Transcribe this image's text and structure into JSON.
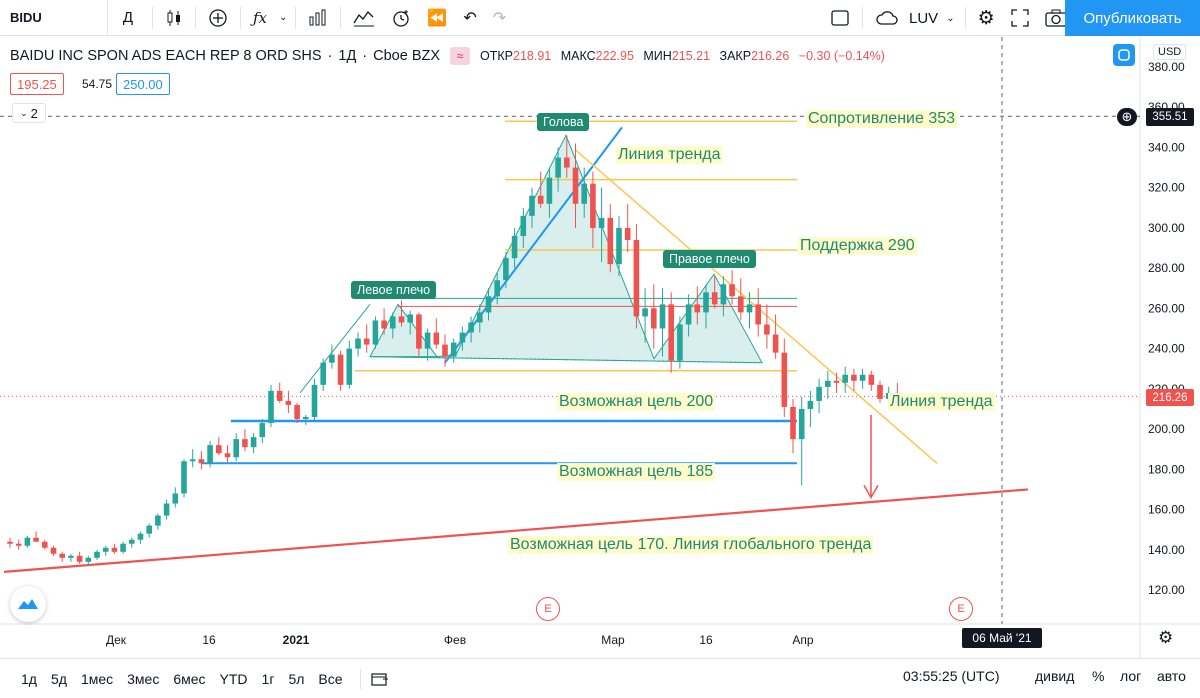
{
  "toolbar": {
    "symbol": "BIDU",
    "interval": "Д",
    "layout_name": "LUV",
    "publish": "Опубликовать"
  },
  "legend": {
    "title": "BAIDU INC SPON ADS EACH REP 8 ORD SHS",
    "interval": "1Д",
    "exchange": "Cboe BZX",
    "open_label": "ОТКР",
    "open": "218.91",
    "high_label": "МАКС",
    "high": "222.95",
    "low_label": "МИН",
    "low": "215.21",
    "close_label": "ЗАКР",
    "close": "216.26",
    "change": "−0.30 (−0.14%)",
    "bid": "195.25",
    "spread": "54.75",
    "ask": "250.00",
    "indicator_count": "2"
  },
  "axis": {
    "currency": "USD",
    "price_ticks": [
      "380.00",
      "360.00",
      "340.00",
      "320.00",
      "300.00",
      "280.00",
      "260.00",
      "240.00",
      "220.00",
      "200.00",
      "180.00",
      "160.00",
      "140.00",
      "120.00"
    ],
    "crosshair_price": "355.51",
    "last_price": "216.26",
    "time_labels": [
      "Дек",
      "16",
      "2021",
      "Фев",
      "Мар",
      "16",
      "Апр"
    ],
    "crosshair_date": "06 Май '21"
  },
  "annotations": {
    "head": "Голова",
    "left_shoulder": "Левое плечо",
    "right_shoulder": "Правое плечо",
    "resistance": "Сопротивление 353",
    "trend_line_1": "Линия тренда",
    "support": "Поддержка 290",
    "target_200": "Возможная цель 200",
    "target_185": "Возможная цель 185",
    "trend_line_2": "Линия тренда",
    "target_170": "Возможная цель 170. Линия глобального тренда",
    "earnings": "E"
  },
  "bottom_bar": {
    "timeframes": [
      "1д",
      "5д",
      "1мес",
      "3мес",
      "6мес",
      "YTD",
      "1г",
      "5л",
      "Все"
    ],
    "time": "03:55:25 (UTC)",
    "dividends": "дивид",
    "percent": "%",
    "log": "лог",
    "auto": "авто"
  },
  "colors": {
    "up": "#26a69a",
    "down": "#ef5350",
    "accent": "#2196f3",
    "annotation": "#1f8a70"
  }
}
